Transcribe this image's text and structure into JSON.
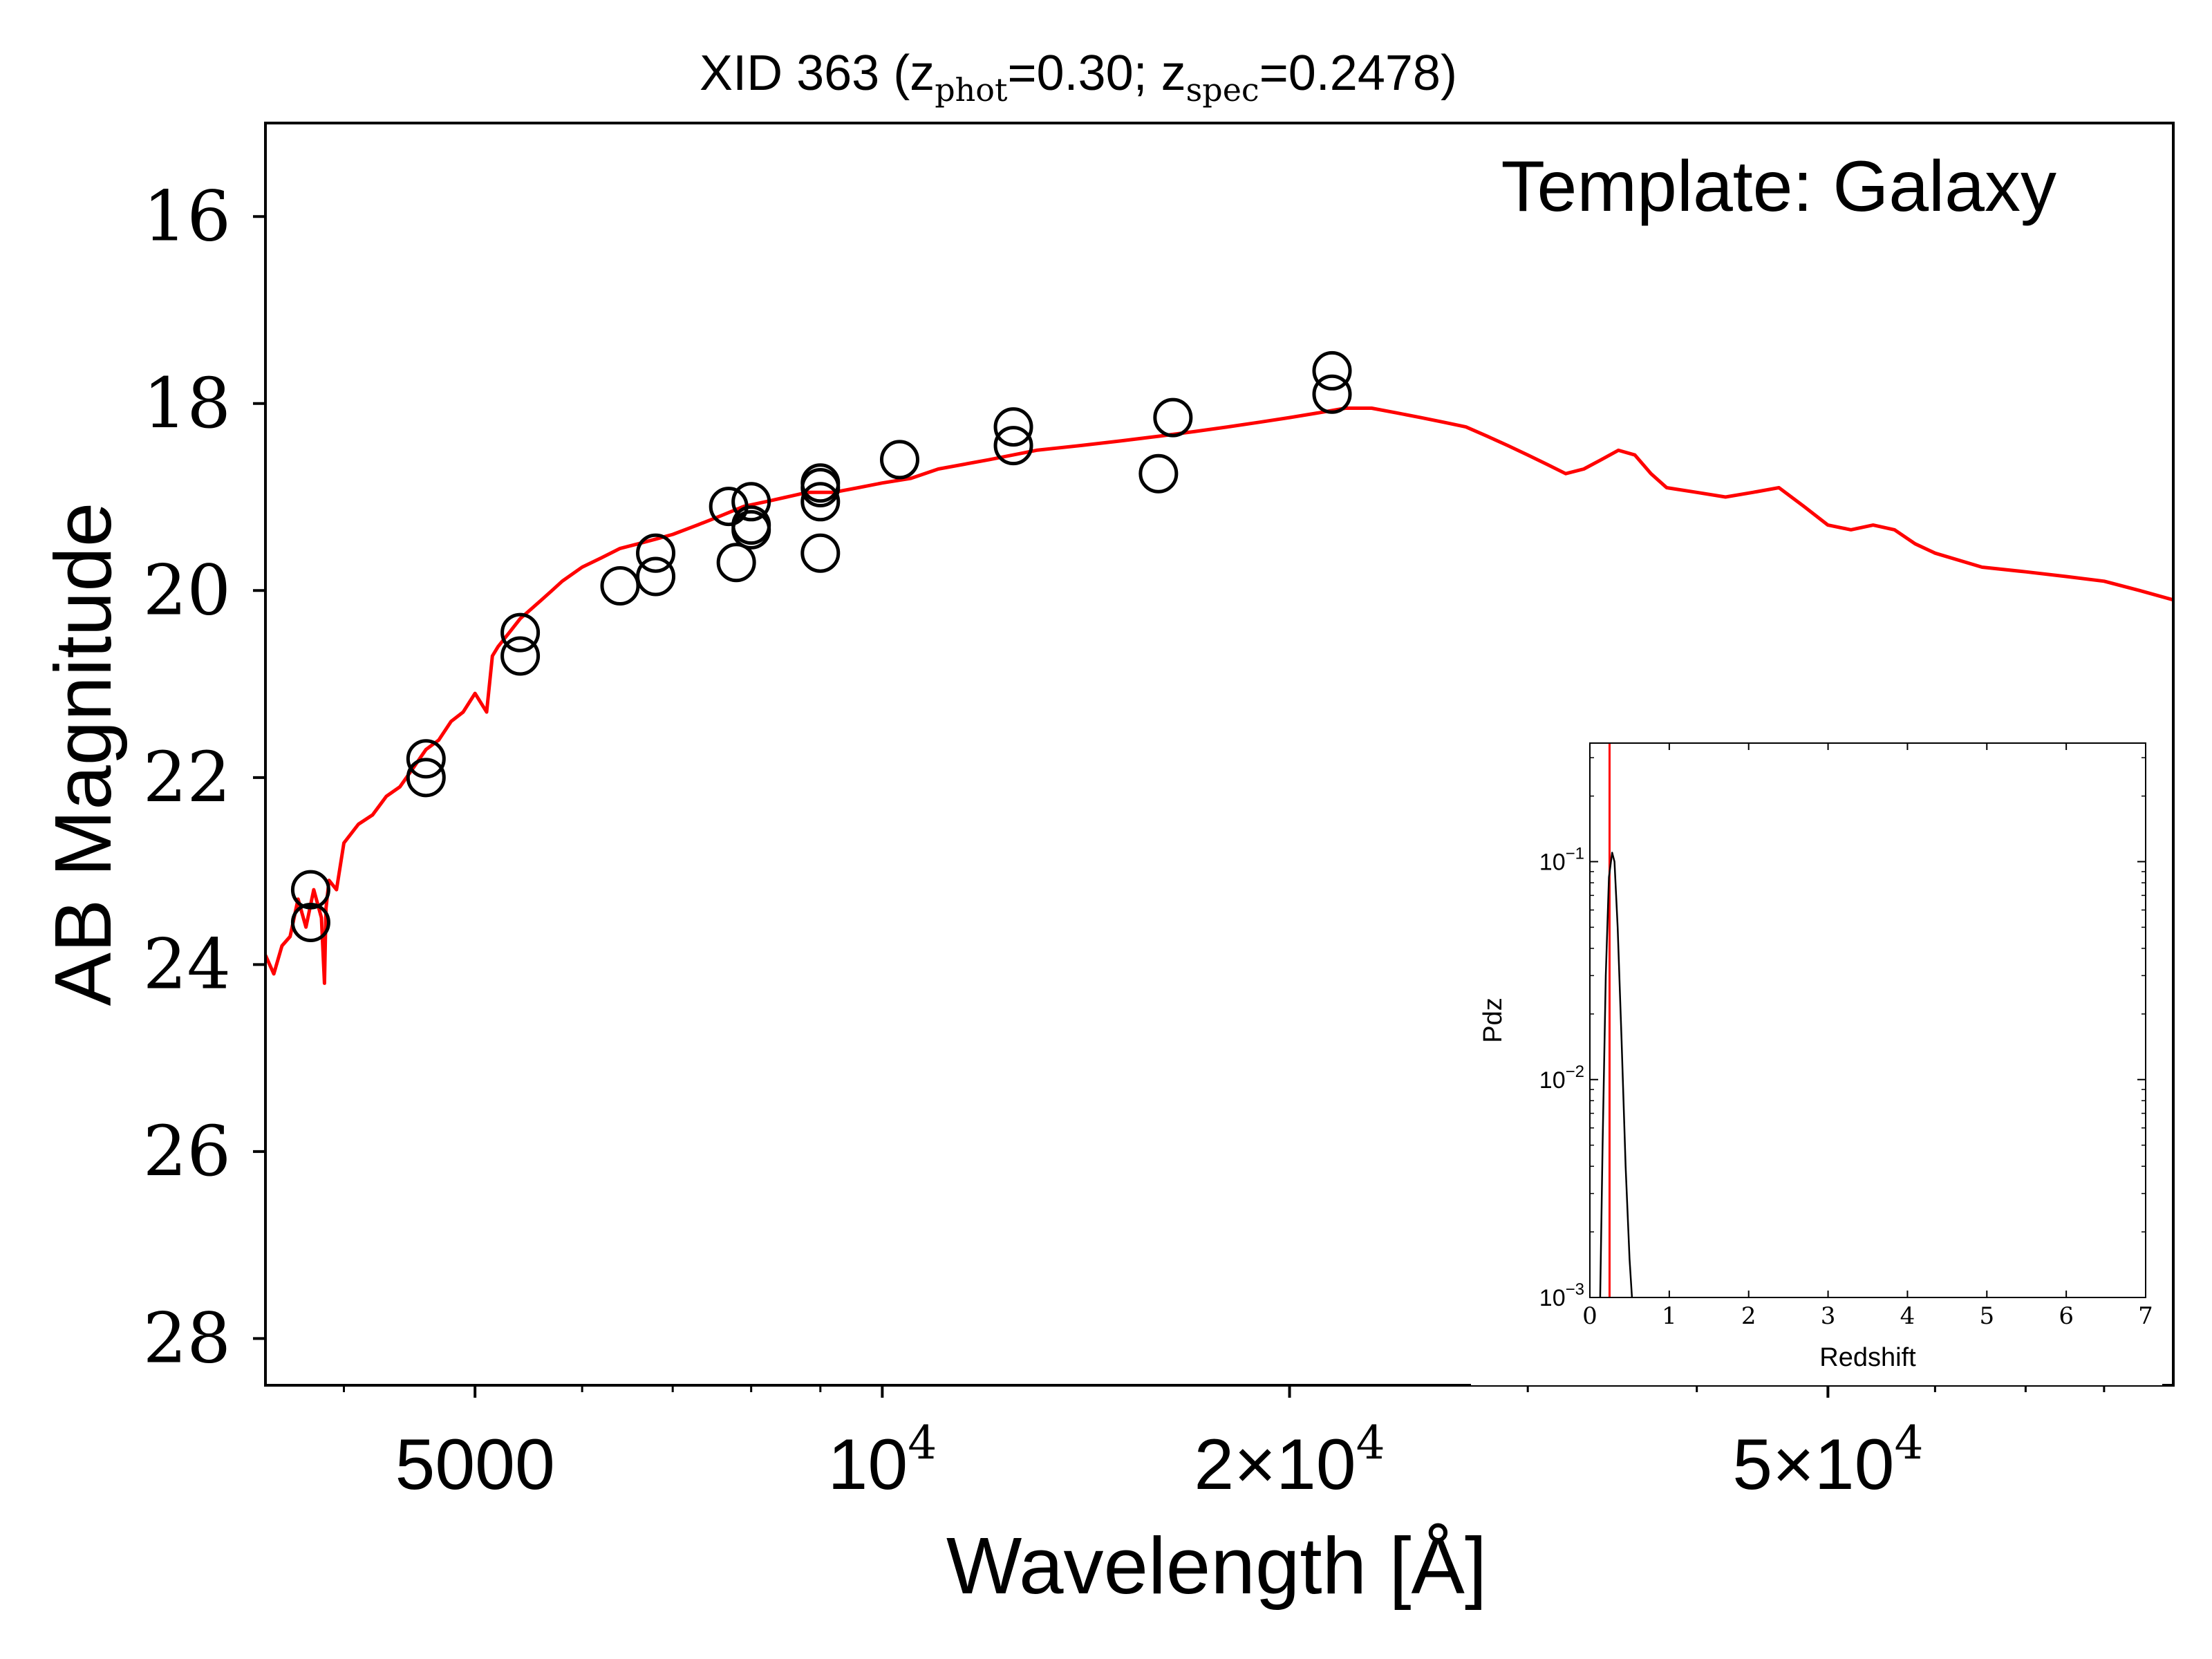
{
  "chart_data": [
    {
      "type": "scatter",
      "title": {
        "prefix": "XID 363 (z",
        "phot_sub": "phot",
        "phot_val": "=0.30; z",
        "spec_sub": "spec",
        "spec_val": "=0.2478)"
      },
      "annotation": "Template: Galaxy",
      "xlabel": "Wavelength [Å]",
      "ylabel": "AB Magnitude",
      "xscale": "log",
      "xlim": [
        3500,
        90000
      ],
      "ylim": [
        28.5,
        15
      ],
      "y_inverted": true,
      "x_ticks": [
        {
          "value": 5000,
          "base": "5000",
          "exp": ""
        },
        {
          "value": 10000,
          "base": "10",
          "exp": "4"
        },
        {
          "value": 20000,
          "base": "2×10",
          "exp": "4"
        },
        {
          "value": 50000,
          "base": "5×10",
          "exp": "4"
        }
      ],
      "y_ticks": [
        16,
        18,
        20,
        22,
        24,
        26,
        28
      ],
      "series": [
        {
          "kind": "line",
          "color": "#ff0000",
          "x": [
            3500,
            3550,
            3600,
            3650,
            3700,
            3750,
            3800,
            3850,
            3870,
            3880,
            3900,
            3950,
            4000,
            4100,
            4200,
            4300,
            4400,
            4500,
            4600,
            4700,
            4800,
            4900,
            5000,
            5100,
            5150,
            5200,
            5300,
            5400,
            5500,
            5600,
            5700,
            5800,
            6000,
            6200,
            6400,
            6600,
            6800,
            7000,
            7300,
            7600,
            7900,
            8200,
            8500,
            8800,
            9200,
            9600,
            10000,
            10500,
            11000,
            12000,
            13000,
            14000,
            15000,
            16000,
            17000,
            18000,
            19000,
            20000,
            21000,
            22000,
            23000,
            24000,
            25000,
            26000,
            27000,
            28000,
            29000,
            30000,
            31000,
            32000,
            33000,
            34000,
            35000,
            36000,
            37000,
            38000,
            40000,
            42000,
            44000,
            46000,
            48000,
            50000,
            52000,
            54000,
            56000,
            58000,
            60000,
            65000,
            70000,
            75000,
            80000,
            85000,
            90000
          ],
          "y": [
            23.9,
            24.1,
            23.8,
            23.7,
            23.3,
            23.6,
            23.2,
            23.5,
            24.2,
            23.4,
            23.1,
            23.2,
            22.7,
            22.5,
            22.4,
            22.2,
            22.1,
            21.9,
            21.7,
            21.6,
            21.4,
            21.3,
            21.1,
            21.3,
            20.7,
            20.6,
            20.45,
            20.3,
            20.2,
            20.1,
            20.0,
            19.9,
            19.75,
            19.65,
            19.55,
            19.5,
            19.45,
            19.4,
            19.3,
            19.2,
            19.1,
            19.05,
            19.0,
            18.95,
            18.95,
            18.9,
            18.85,
            18.8,
            18.7,
            18.6,
            18.5,
            18.45,
            18.4,
            18.35,
            18.3,
            18.25,
            18.2,
            18.15,
            18.1,
            18.05,
            18.05,
            18.1,
            18.15,
            18.2,
            18.25,
            18.35,
            18.45,
            18.55,
            18.65,
            18.75,
            18.7,
            18.6,
            18.5,
            18.55,
            18.75,
            18.9,
            18.95,
            19.0,
            18.95,
            18.9,
            19.1,
            19.3,
            19.35,
            19.3,
            19.35,
            19.5,
            19.6,
            19.75,
            19.8,
            19.85,
            19.9,
            20.0,
            20.1
          ]
        },
        {
          "kind": "scatter",
          "marker": "open-circle",
          "x": [
            3780,
            3780,
            4600,
            4600,
            5400,
            5400,
            6400,
            6800,
            6800,
            7700,
            7800,
            8000,
            8000,
            8000,
            9000,
            9000,
            9000,
            9000,
            10300,
            12500,
            12500,
            16000,
            16400,
            21500,
            21500
          ],
          "y": [
            23.2,
            23.55,
            21.8,
            22.0,
            20.45,
            20.7,
            19.95,
            19.6,
            19.85,
            19.1,
            19.7,
            19.05,
            19.3,
            19.35,
            18.85,
            18.9,
            19.05,
            19.6,
            18.6,
            18.25,
            18.45,
            18.75,
            18.15,
            17.65,
            17.9
          ]
        }
      ]
    },
    {
      "type": "line",
      "inset": true,
      "xlabel": "Redshift",
      "ylabel": "Pdz",
      "yscale": "log",
      "xlim": [
        0,
        7
      ],
      "ylim": [
        0.001,
        0.35
      ],
      "x_ticks": [
        0,
        1,
        2,
        3,
        4,
        5,
        6,
        7
      ],
      "y_ticks": [
        {
          "value": 0.1,
          "base": "10",
          "exp": "−1"
        },
        {
          "value": 0.01,
          "base": "10",
          "exp": "−2"
        },
        {
          "value": 0.001,
          "base": "10",
          "exp": "−3"
        }
      ],
      "reference_line": {
        "x": 0.2478,
        "color": "#ff0000"
      },
      "series": [
        {
          "color": "#000000",
          "x": [
            0.13,
            0.16,
            0.2,
            0.24,
            0.28,
            0.31,
            0.35,
            0.4,
            0.45,
            0.5,
            0.53
          ],
          "y": [
            0.001,
            0.005,
            0.03,
            0.085,
            0.11,
            0.1,
            0.05,
            0.015,
            0.004,
            0.0015,
            0.001
          ]
        }
      ]
    }
  ]
}
